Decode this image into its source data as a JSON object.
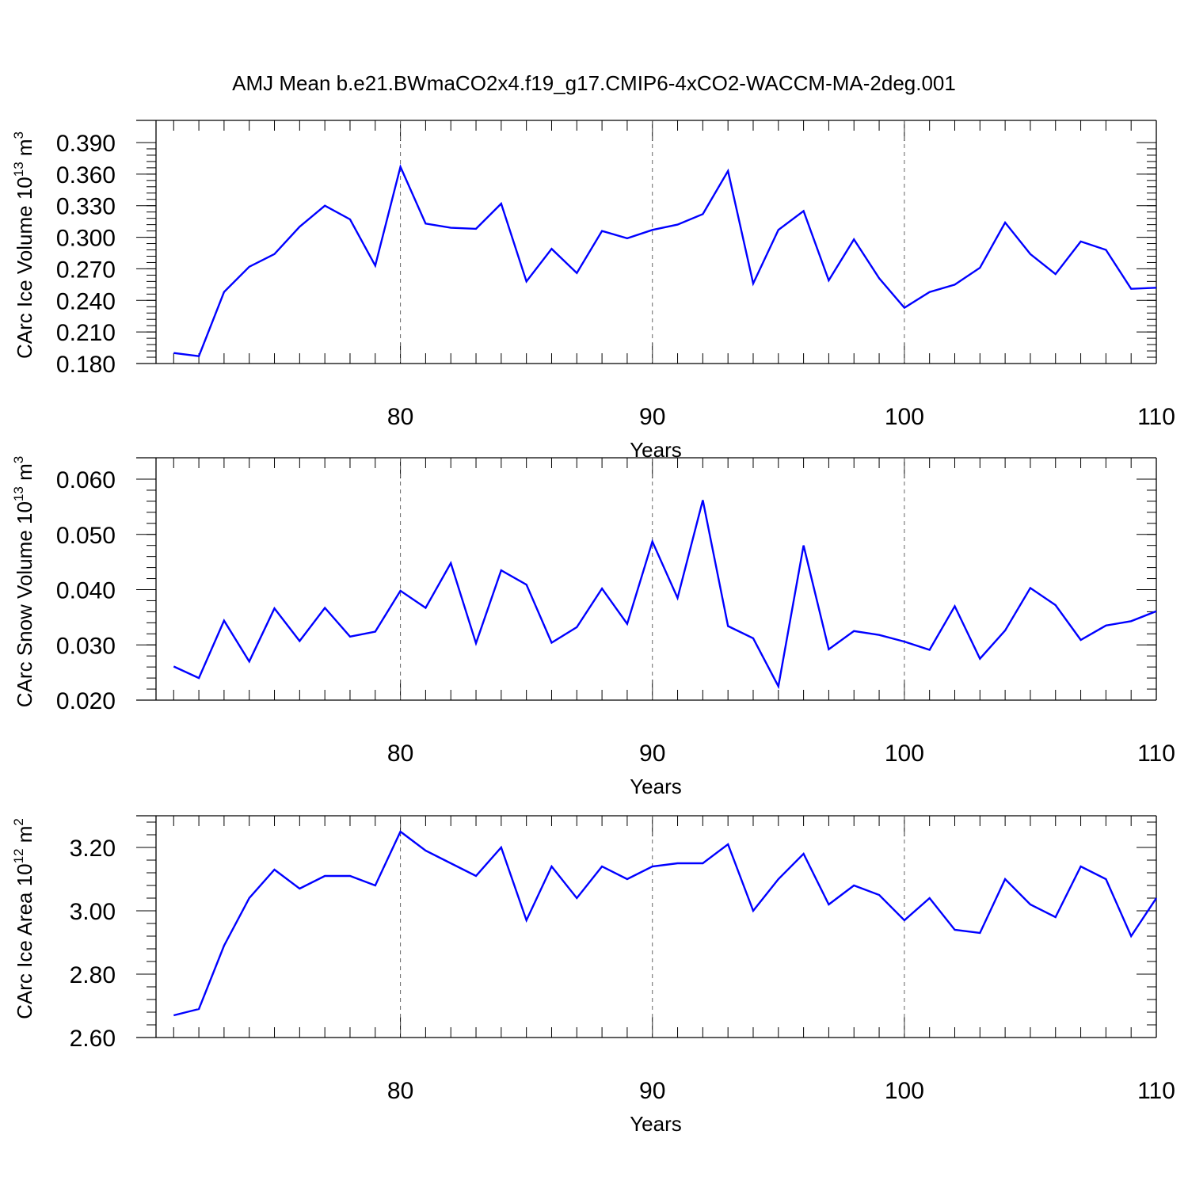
{
  "figure_title": "AMJ Mean b.e21.BWmaCO2x4.f19_g17.CMIP6-4xCO2-WACCM-MA-2deg.001",
  "colors": {
    "line": "#0000ff",
    "axis": "#000000",
    "grid": "#666666"
  },
  "chart_data": [
    {
      "type": "line",
      "title": "AMJ Mean b.e21.BWmaCO2x4.f19_g17.CMIP6-4xCO2-WACCM-MA-2deg.001",
      "xlabel": "Years",
      "ylabel": {
        "prefix": "CArc Ice Volume 10",
        "exp": "13",
        "suffix": " m",
        "sup2": "3"
      },
      "x": [
        71,
        72,
        73,
        74,
        75,
        76,
        77,
        78,
        79,
        80,
        81,
        82,
        83,
        84,
        85,
        86,
        87,
        88,
        89,
        90,
        91,
        92,
        93,
        94,
        95,
        96,
        97,
        98,
        99,
        100,
        101,
        102,
        103,
        104,
        105,
        106,
        107,
        108,
        109,
        110
      ],
      "series": [
        {
          "values": [
            0.19,
            0.187,
            0.248,
            0.272,
            0.284,
            0.31,
            0.33,
            0.317,
            0.273,
            0.367,
            0.313,
            0.309,
            0.308,
            0.332,
            0.258,
            0.289,
            0.266,
            0.306,
            0.299,
            0.307,
            0.312,
            0.322,
            0.363,
            0.256,
            0.307,
            0.325,
            0.259,
            0.298,
            0.261,
            0.233,
            0.248,
            0.255,
            0.271,
            0.314,
            0.284,
            0.265,
            0.296,
            0.288,
            0.251,
            0.252
          ]
        }
      ],
      "xlim": [
        70.3,
        110
      ],
      "ylim": [
        0.18,
        0.39
      ],
      "xticks": [
        80,
        90,
        100,
        110
      ],
      "yticks": [
        0.18,
        0.21,
        0.24,
        0.27,
        0.3,
        0.33,
        0.36,
        0.39
      ],
      "ytick_labels": [
        "0.180",
        "0.210",
        "0.240",
        "0.270",
        "0.300",
        "0.330",
        "0.360",
        "0.390"
      ],
      "grid": "vertical dashed at major x ticks"
    },
    {
      "type": "line",
      "xlabel": "Years",
      "ylabel": {
        "prefix": "CArc Snow Volume 10",
        "exp": "13",
        "suffix": " m",
        "sup2": "3"
      },
      "x": [
        71,
        72,
        73,
        74,
        75,
        76,
        77,
        78,
        79,
        80,
        81,
        82,
        83,
        84,
        85,
        86,
        87,
        88,
        89,
        90,
        91,
        92,
        93,
        94,
        95,
        96,
        97,
        98,
        99,
        100,
        101,
        102,
        103,
        104,
        105,
        106,
        107,
        108,
        109,
        110
      ],
      "series": [
        {
          "values": [
            0.0261,
            0.024,
            0.0344,
            0.027,
            0.0366,
            0.0307,
            0.0367,
            0.0315,
            0.0324,
            0.0398,
            0.0367,
            0.0448,
            0.0303,
            0.0435,
            0.0409,
            0.0304,
            0.0332,
            0.0402,
            0.0338,
            0.0487,
            0.0385,
            0.0562,
            0.0334,
            0.0312,
            0.0225,
            0.048,
            0.0292,
            0.0325,
            0.0318,
            0.0306,
            0.0291,
            0.037,
            0.0275,
            0.0326,
            0.0403,
            0.0372,
            0.0309,
            0.0335,
            0.0343,
            0.0361
          ]
        }
      ],
      "xlim": [
        70.3,
        110
      ],
      "ylim": [
        0.02,
        0.06
      ],
      "xticks": [
        80,
        90,
        100,
        110
      ],
      "yticks": [
        0.02,
        0.03,
        0.04,
        0.05,
        0.06
      ],
      "ytick_labels": [
        "0.020",
        "0.030",
        "0.040",
        "0.050",
        "0.060"
      ],
      "grid": "vertical dashed at major x ticks"
    },
    {
      "type": "line",
      "xlabel": "Years",
      "ylabel": {
        "prefix": "CArc Ice Area 10",
        "exp": "12",
        "suffix": " m",
        "sup2": "2"
      },
      "x": [
        71,
        72,
        73,
        74,
        75,
        76,
        77,
        78,
        79,
        80,
        81,
        82,
        83,
        84,
        85,
        86,
        87,
        88,
        89,
        90,
        91,
        92,
        93,
        94,
        95,
        96,
        97,
        98,
        99,
        100,
        101,
        102,
        103,
        104,
        105,
        106,
        107,
        108,
        109,
        110
      ],
      "series": [
        {
          "values": [
            2.67,
            2.69,
            2.89,
            3.04,
            3.13,
            3.07,
            3.11,
            3.11,
            3.08,
            3.25,
            3.19,
            3.15,
            3.11,
            3.2,
            2.97,
            3.14,
            3.04,
            3.14,
            3.1,
            3.14,
            3.15,
            3.15,
            3.21,
            3.0,
            3.1,
            3.18,
            3.02,
            3.08,
            3.05,
            2.97,
            3.04,
            2.94,
            2.93,
            3.1,
            3.02,
            2.98,
            3.14,
            3.1,
            2.92,
            3.04
          ]
        }
      ],
      "xlim": [
        70.3,
        110
      ],
      "ylim": [
        2.6,
        3.3
      ],
      "xticks": [
        80,
        90,
        100,
        110
      ],
      "yticks": [
        2.6,
        2.8,
        3.0,
        3.2
      ],
      "ytick_labels": [
        "2.60",
        "2.80",
        "3.00",
        "3.20"
      ],
      "grid": "vertical dashed at major x ticks"
    }
  ]
}
